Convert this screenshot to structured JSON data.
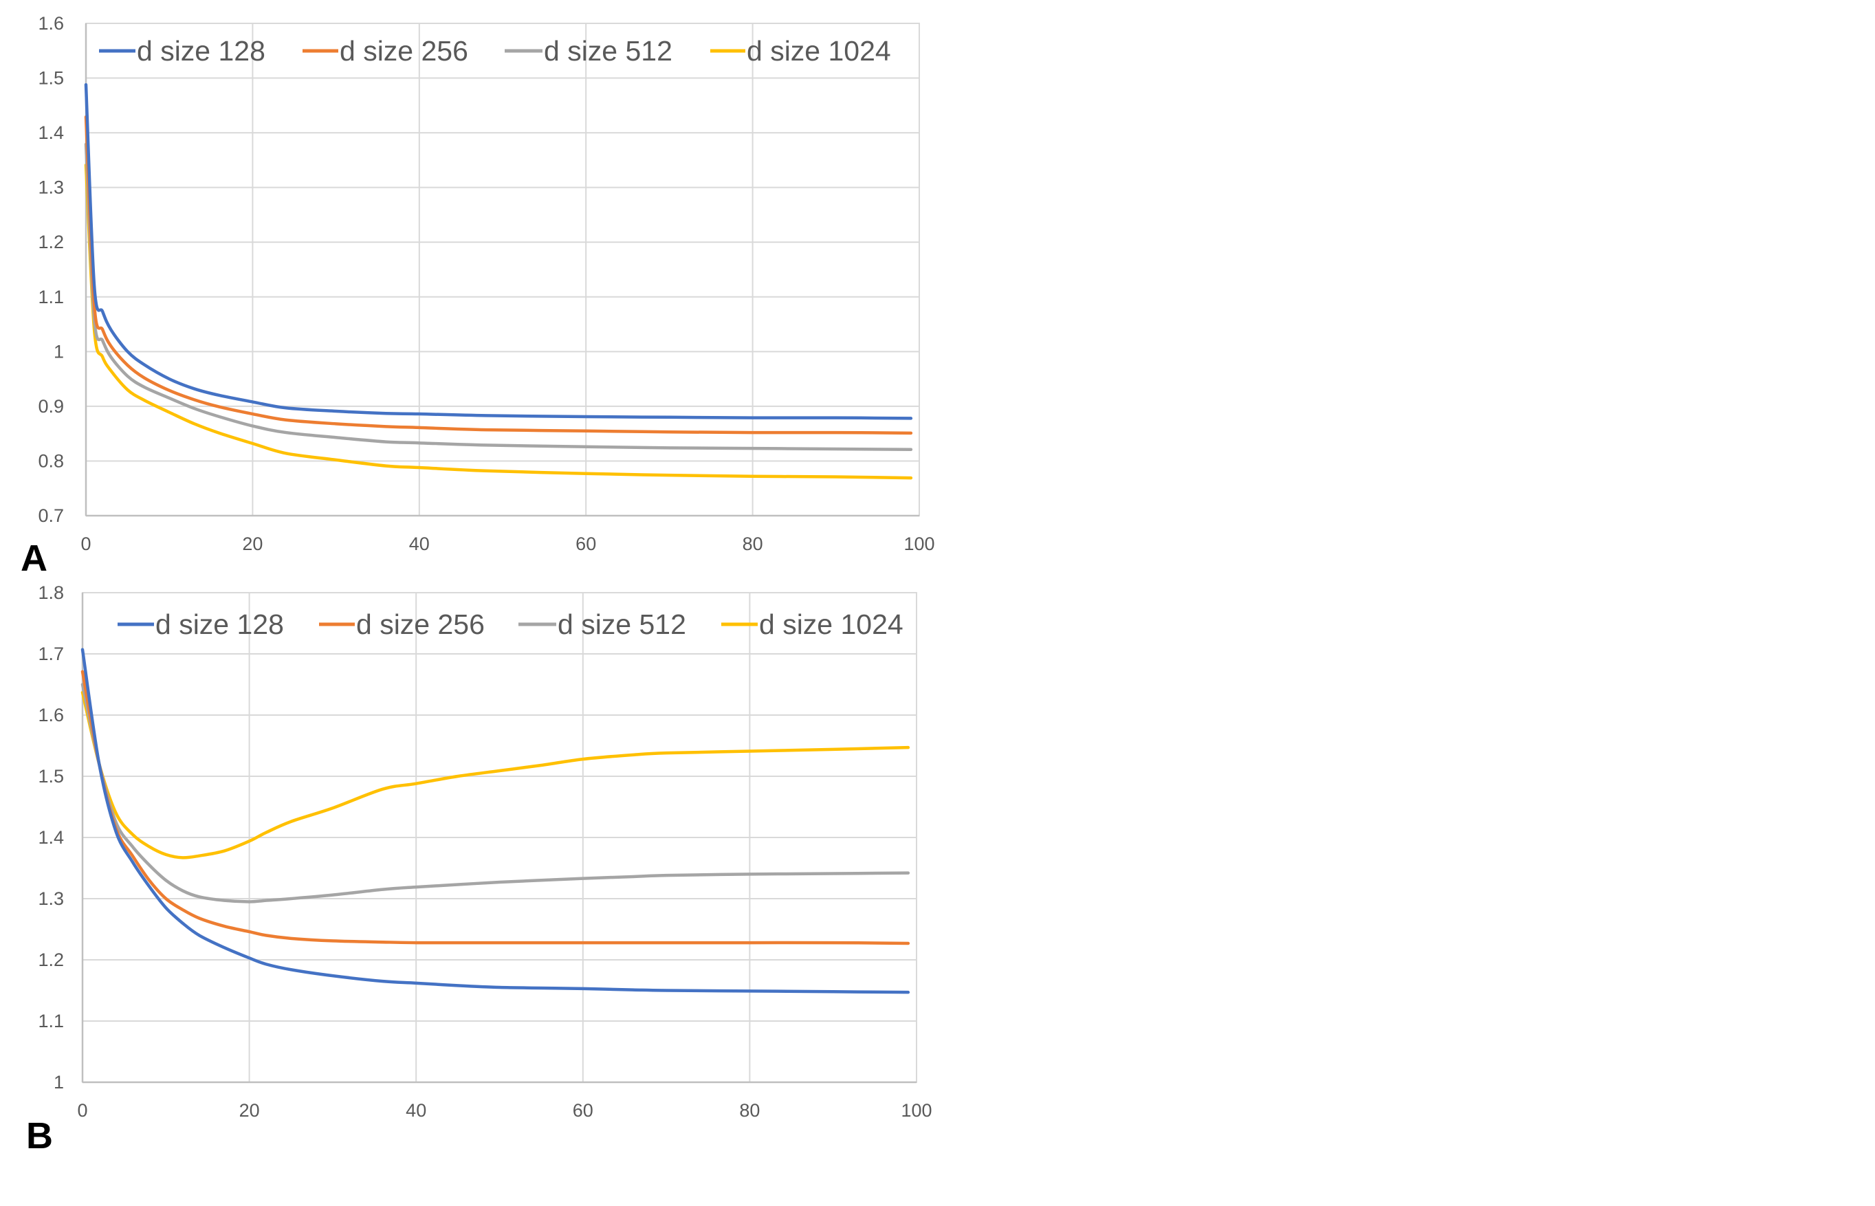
{
  "figure": {
    "panels": [
      "A",
      "B"
    ]
  },
  "chart_data": [
    {
      "panel": "A",
      "type": "line",
      "title": "",
      "xlabel": "",
      "ylabel": "",
      "xlim": [
        0,
        100
      ],
      "ylim": [
        0.7,
        1.6
      ],
      "x_ticks": [
        "0",
        "20",
        "40",
        "60",
        "80",
        "100"
      ],
      "y_ticks": [
        "0.7",
        "0.8",
        "0.9",
        "1",
        "1.1",
        "1.2",
        "1.3",
        "1.4",
        "1.5",
        "1.6"
      ],
      "grid": true,
      "legend_position": "top-inside",
      "x": [
        0,
        1,
        2,
        3,
        5,
        7,
        10,
        13,
        16,
        20,
        24,
        30,
        36,
        40,
        48,
        60,
        70,
        80,
        90,
        99
      ],
      "series": [
        {
          "name": "d size 128",
          "color": "#4472C4",
          "values": [
            1.488,
            1.12,
            1.073,
            1.04,
            1.0,
            0.976,
            0.95,
            0.932,
            0.92,
            0.908,
            0.897,
            0.891,
            0.887,
            0.886,
            0.883,
            0.881,
            0.88,
            0.879,
            0.879,
            0.878
          ]
        },
        {
          "name": "d size 256",
          "color": "#ED7D31",
          "values": [
            1.429,
            1.085,
            1.04,
            1.01,
            0.975,
            0.952,
            0.929,
            0.912,
            0.899,
            0.886,
            0.875,
            0.868,
            0.863,
            0.861,
            0.857,
            0.855,
            0.853,
            0.852,
            0.852,
            0.851
          ]
        },
        {
          "name": "d size 512",
          "color": "#A5A5A5",
          "values": [
            1.379,
            1.06,
            1.02,
            0.99,
            0.955,
            0.935,
            0.915,
            0.896,
            0.881,
            0.864,
            0.852,
            0.843,
            0.835,
            0.833,
            0.829,
            0.826,
            0.824,
            0.823,
            0.822,
            0.821
          ]
        },
        {
          "name": "d size 1024",
          "color": "#FFC000",
          "values": [
            1.341,
            1.04,
            0.99,
            0.965,
            0.93,
            0.911,
            0.889,
            0.868,
            0.851,
            0.832,
            0.814,
            0.802,
            0.791,
            0.788,
            0.782,
            0.777,
            0.774,
            0.772,
            0.771,
            0.769
          ]
        }
      ]
    },
    {
      "panel": "B",
      "type": "line",
      "title": "",
      "xlabel": "",
      "ylabel": "",
      "xlim": [
        0,
        100
      ],
      "ylim": [
        1.0,
        1.8
      ],
      "x_ticks": [
        "0",
        "20",
        "40",
        "60",
        "80",
        "100"
      ],
      "y_ticks": [
        "1",
        "1.1",
        "1.2",
        "1.3",
        "1.4",
        "1.5",
        "1.6",
        "1.7",
        "1.8"
      ],
      "grid": true,
      "legend_position": "top-inside",
      "x": [
        0,
        2,
        4,
        6,
        8,
        10,
        12,
        14,
        17,
        20,
        22,
        25,
        30,
        36,
        40,
        45,
        50,
        55,
        60,
        66,
        70,
        80,
        90,
        99
      ],
      "series": [
        {
          "name": "d size 128",
          "color": "#4472C4",
          "values": [
            1.707,
            1.52,
            1.41,
            1.36,
            1.32,
            1.285,
            1.26,
            1.24,
            1.22,
            1.203,
            1.193,
            1.184,
            1.174,
            1.165,
            1.162,
            1.158,
            1.155,
            1.154,
            1.153,
            1.151,
            1.15,
            1.149,
            1.148,
            1.147
          ]
        },
        {
          "name": "d size 256",
          "color": "#ED7D31",
          "values": [
            1.671,
            1.52,
            1.415,
            1.37,
            1.33,
            1.3,
            1.282,
            1.268,
            1.255,
            1.246,
            1.24,
            1.235,
            1.231,
            1.229,
            1.228,
            1.228,
            1.228,
            1.228,
            1.228,
            1.228,
            1.228,
            1.228,
            1.228,
            1.227
          ]
        },
        {
          "name": "d size 512",
          "color": "#A5A5A5",
          "values": [
            1.65,
            1.52,
            1.425,
            1.385,
            1.355,
            1.33,
            1.313,
            1.303,
            1.297,
            1.295,
            1.297,
            1.3,
            1.306,
            1.315,
            1.319,
            1.323,
            1.327,
            1.33,
            1.333,
            1.336,
            1.338,
            1.34,
            1.341,
            1.342
          ]
        },
        {
          "name": "d size 1024",
          "color": "#FFC000",
          "values": [
            1.637,
            1.52,
            1.44,
            1.405,
            1.385,
            1.372,
            1.367,
            1.37,
            1.378,
            1.394,
            1.408,
            1.426,
            1.448,
            1.479,
            1.488,
            1.5,
            1.509,
            1.518,
            1.528,
            1.535,
            1.538,
            1.541,
            1.544,
            1.547
          ]
        }
      ]
    }
  ]
}
